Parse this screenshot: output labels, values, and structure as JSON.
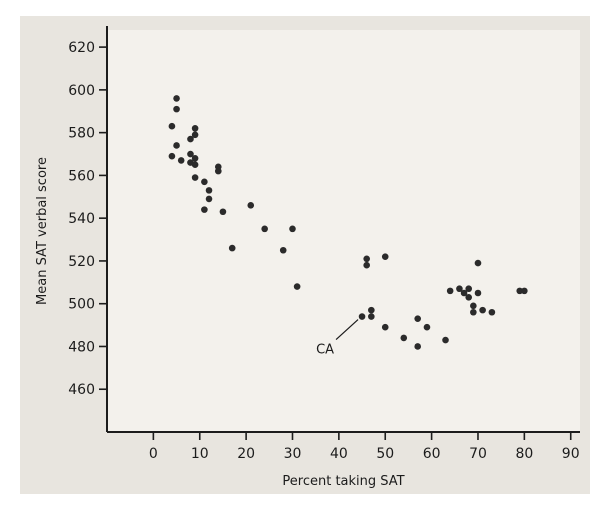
{
  "colors": {
    "panel_background": "#e8e5df",
    "plot_area": "#f3f1ec",
    "axis": "#1c1c1c",
    "marker": "#2b2b2b"
  },
  "chart_data": {
    "type": "scatter",
    "title": "",
    "xlabel": "Percent taking SAT",
    "ylabel": "Mean SAT verbal score",
    "xlim": [
      -10,
      92
    ],
    "ylim": [
      440,
      628
    ],
    "xticks": [
      0,
      10,
      20,
      30,
      40,
      50,
      60,
      70,
      80,
      90
    ],
    "yticks": [
      460,
      480,
      500,
      520,
      540,
      560,
      580,
      600,
      620
    ],
    "grid": false,
    "legend": "none",
    "annotations": [
      {
        "text": "CA",
        "x": 45,
        "y": 494
      }
    ],
    "series": [
      {
        "points": [
          [
            4,
            583
          ],
          [
            5,
            596
          ],
          [
            5,
            591
          ],
          [
            4,
            569
          ],
          [
            5,
            574
          ],
          [
            6,
            567
          ],
          [
            8,
            577
          ],
          [
            9,
            579
          ],
          [
            9,
            582
          ],
          [
            8,
            566
          ],
          [
            8,
            570
          ],
          [
            9,
            568
          ],
          [
            9,
            565
          ],
          [
            9,
            559
          ],
          [
            11,
            557
          ],
          [
            12,
            553
          ],
          [
            12,
            549
          ],
          [
            11,
            544
          ],
          [
            14,
            564
          ],
          [
            14,
            562
          ],
          [
            15,
            543
          ],
          [
            17,
            526
          ],
          [
            21,
            546
          ],
          [
            24,
            535
          ],
          [
            28,
            525
          ],
          [
            30,
            535
          ],
          [
            31,
            508
          ],
          [
            45,
            494
          ],
          [
            46,
            521
          ],
          [
            46,
            518
          ],
          [
            47,
            497
          ],
          [
            47,
            494
          ],
          [
            50,
            522
          ],
          [
            50,
            489
          ],
          [
            54,
            484
          ],
          [
            57,
            493
          ],
          [
            57,
            480
          ],
          [
            59,
            489
          ],
          [
            63,
            483
          ],
          [
            64,
            506
          ],
          [
            66,
            507
          ],
          [
            67,
            505
          ],
          [
            68,
            503
          ],
          [
            68,
            507
          ],
          [
            69,
            499
          ],
          [
            69,
            496
          ],
          [
            70,
            505
          ],
          [
            70,
            519
          ],
          [
            71,
            497
          ],
          [
            73,
            496
          ],
          [
            79,
            506
          ],
          [
            80,
            506
          ]
        ]
      }
    ]
  }
}
